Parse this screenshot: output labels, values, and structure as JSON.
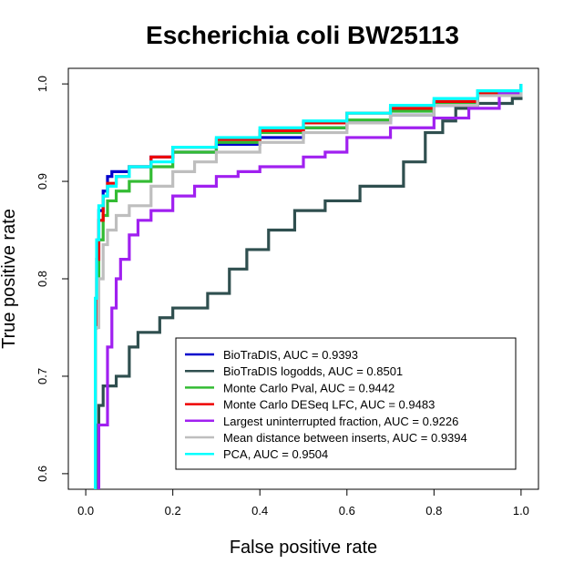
{
  "chart_data": {
    "type": "line",
    "title": "Escherichia coli BW25113",
    "xlabel": "False positive rate",
    "ylabel": "True positive rate",
    "xlim": [
      0,
      1
    ],
    "ylim": [
      0.6,
      1.0
    ],
    "x_ticks": [
      "0.0",
      "0.2",
      "0.4",
      "0.6",
      "0.8",
      "1.0"
    ],
    "y_ticks": [
      "0.6",
      "0.7",
      "0.8",
      "0.9",
      "1.0"
    ],
    "grid": false,
    "legend_position": "bottom-right",
    "series": [
      {
        "name": "BioTraDIS, AUC =  0.9393",
        "color": "#0000cc",
        "points": [
          [
            0.02,
            0.5
          ],
          [
            0.022,
            0.75
          ],
          [
            0.025,
            0.82
          ],
          [
            0.03,
            0.87
          ],
          [
            0.04,
            0.89
          ],
          [
            0.05,
            0.905
          ],
          [
            0.06,
            0.91
          ],
          [
            0.1,
            0.915
          ],
          [
            0.15,
            0.925
          ],
          [
            0.2,
            0.93
          ],
          [
            0.3,
            0.938
          ],
          [
            0.4,
            0.945
          ],
          [
            0.5,
            0.955
          ],
          [
            0.6,
            0.96
          ],
          [
            0.7,
            0.968
          ],
          [
            0.8,
            0.978
          ],
          [
            0.9,
            0.988
          ],
          [
            1.0,
            1.0
          ]
        ]
      },
      {
        "name": "BioTraDIS logodds, AUC =  0.8501",
        "color": "#2f4f4f",
        "points": [
          [
            0.02,
            0.5
          ],
          [
            0.025,
            0.65
          ],
          [
            0.03,
            0.67
          ],
          [
            0.04,
            0.69
          ],
          [
            0.07,
            0.7
          ],
          [
            0.1,
            0.73
          ],
          [
            0.12,
            0.745
          ],
          [
            0.17,
            0.76
          ],
          [
            0.2,
            0.77
          ],
          [
            0.28,
            0.785
          ],
          [
            0.33,
            0.81
          ],
          [
            0.37,
            0.83
          ],
          [
            0.42,
            0.85
          ],
          [
            0.48,
            0.87
          ],
          [
            0.55,
            0.88
          ],
          [
            0.63,
            0.895
          ],
          [
            0.73,
            0.92
          ],
          [
            0.78,
            0.95
          ],
          [
            0.82,
            0.962
          ],
          [
            0.85,
            0.975
          ],
          [
            0.88,
            0.98
          ],
          [
            0.98,
            0.985
          ],
          [
            1.0,
            1.0
          ]
        ]
      },
      {
        "name": "Monte Carlo Pval, AUC =  0.9442",
        "color": "#33bb33",
        "points": [
          [
            0.02,
            0.5
          ],
          [
            0.022,
            0.75
          ],
          [
            0.025,
            0.8
          ],
          [
            0.03,
            0.84
          ],
          [
            0.04,
            0.865
          ],
          [
            0.05,
            0.88
          ],
          [
            0.07,
            0.89
          ],
          [
            0.1,
            0.9
          ],
          [
            0.15,
            0.915
          ],
          [
            0.2,
            0.93
          ],
          [
            0.3,
            0.94
          ],
          [
            0.4,
            0.95
          ],
          [
            0.5,
            0.955
          ],
          [
            0.6,
            0.963
          ],
          [
            0.7,
            0.972
          ],
          [
            0.8,
            0.98
          ],
          [
            0.9,
            0.99
          ],
          [
            1.0,
            1.0
          ]
        ]
      },
      {
        "name": "Monte Carlo DESeq LFC, AUC =  0.9483",
        "color": "#ee0000",
        "points": [
          [
            0.02,
            0.5
          ],
          [
            0.022,
            0.75
          ],
          [
            0.025,
            0.82
          ],
          [
            0.03,
            0.86
          ],
          [
            0.04,
            0.885
          ],
          [
            0.05,
            0.898
          ],
          [
            0.07,
            0.905
          ],
          [
            0.1,
            0.915
          ],
          [
            0.15,
            0.925
          ],
          [
            0.2,
            0.935
          ],
          [
            0.3,
            0.943
          ],
          [
            0.4,
            0.952
          ],
          [
            0.5,
            0.96
          ],
          [
            0.6,
            0.97
          ],
          [
            0.7,
            0.975
          ],
          [
            0.8,
            0.982
          ],
          [
            0.9,
            0.99
          ],
          [
            1.0,
            1.0
          ]
        ]
      },
      {
        "name": "Largest uninterrupted fraction, AUC =  0.9226",
        "color": "#a020f0",
        "points": [
          [
            0.02,
            0.5
          ],
          [
            0.03,
            0.65
          ],
          [
            0.05,
            0.73
          ],
          [
            0.06,
            0.77
          ],
          [
            0.07,
            0.8
          ],
          [
            0.08,
            0.82
          ],
          [
            0.1,
            0.845
          ],
          [
            0.12,
            0.86
          ],
          [
            0.15,
            0.87
          ],
          [
            0.2,
            0.885
          ],
          [
            0.25,
            0.895
          ],
          [
            0.3,
            0.905
          ],
          [
            0.35,
            0.91
          ],
          [
            0.4,
            0.915
          ],
          [
            0.5,
            0.925
          ],
          [
            0.55,
            0.93
          ],
          [
            0.6,
            0.945
          ],
          [
            0.7,
            0.955
          ],
          [
            0.8,
            0.965
          ],
          [
            0.88,
            0.975
          ],
          [
            0.95,
            0.99
          ],
          [
            1.0,
            1.0
          ]
        ]
      },
      {
        "name": "Mean distance between inserts, AUC =  0.9394",
        "color": "#bebebe",
        "points": [
          [
            0.02,
            0.5
          ],
          [
            0.022,
            0.75
          ],
          [
            0.03,
            0.8
          ],
          [
            0.04,
            0.835
          ],
          [
            0.05,
            0.85
          ],
          [
            0.07,
            0.865
          ],
          [
            0.1,
            0.875
          ],
          [
            0.15,
            0.895
          ],
          [
            0.2,
            0.91
          ],
          [
            0.25,
            0.92
          ],
          [
            0.3,
            0.93
          ],
          [
            0.4,
            0.94
          ],
          [
            0.5,
            0.95
          ],
          [
            0.6,
            0.96
          ],
          [
            0.7,
            0.968
          ],
          [
            0.8,
            0.978
          ],
          [
            0.9,
            0.988
          ],
          [
            1.0,
            1.0
          ]
        ]
      },
      {
        "name": "PCA, AUC =  0.9504",
        "color": "#00ffff",
        "points": [
          [
            0.02,
            0.5
          ],
          [
            0.022,
            0.78
          ],
          [
            0.025,
            0.84
          ],
          [
            0.03,
            0.875
          ],
          [
            0.04,
            0.885
          ],
          [
            0.05,
            0.895
          ],
          [
            0.07,
            0.905
          ],
          [
            0.1,
            0.915
          ],
          [
            0.15,
            0.92
          ],
          [
            0.2,
            0.935
          ],
          [
            0.3,
            0.945
          ],
          [
            0.4,
            0.955
          ],
          [
            0.5,
            0.962
          ],
          [
            0.6,
            0.97
          ],
          [
            0.7,
            0.978
          ],
          [
            0.8,
            0.985
          ],
          [
            0.9,
            0.993
          ],
          [
            1.0,
            1.0
          ]
        ]
      }
    ]
  }
}
